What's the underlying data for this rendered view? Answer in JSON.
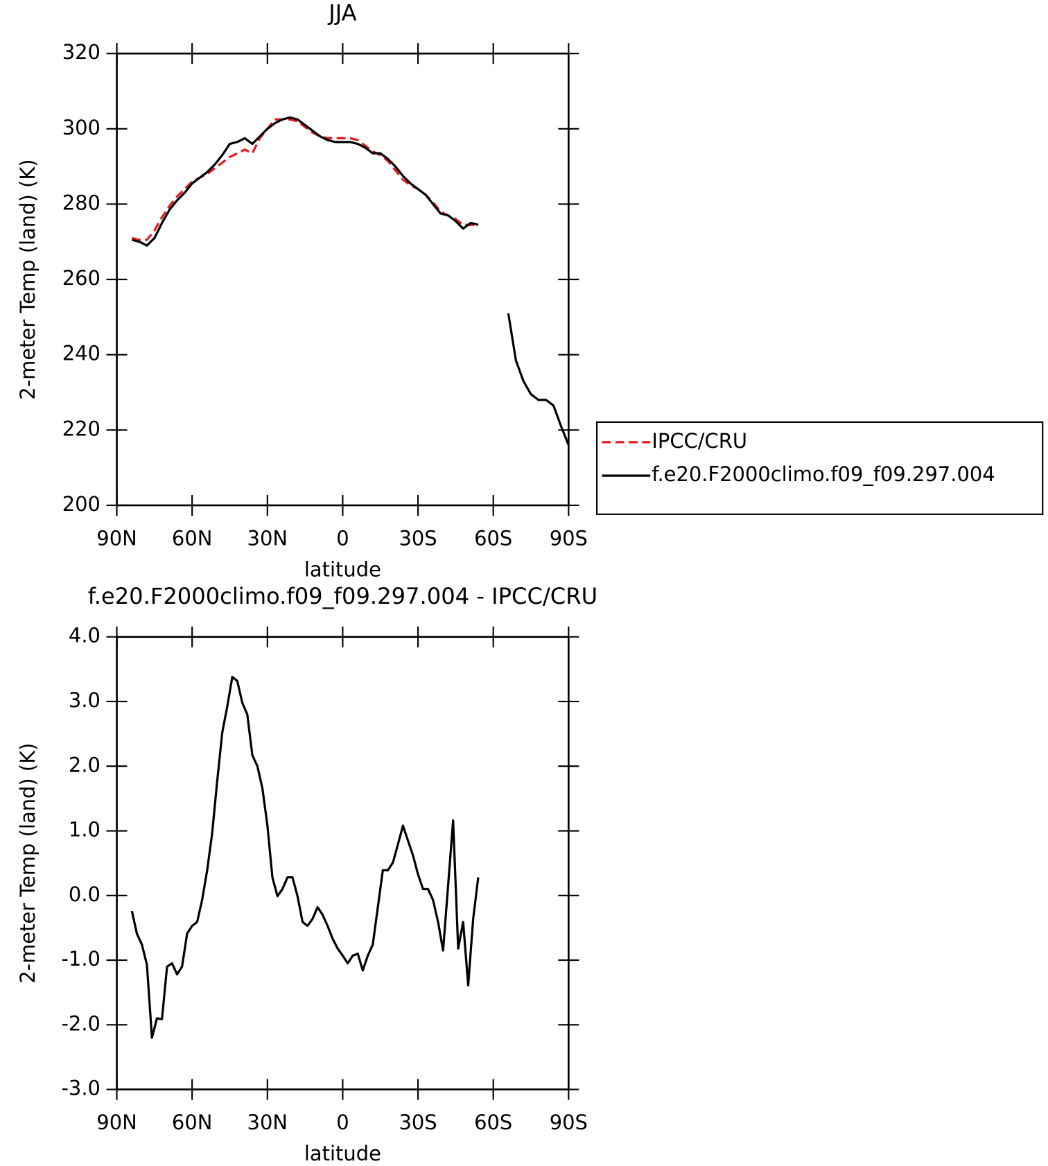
{
  "chart_data": [
    {
      "type": "line",
      "title": "JJA",
      "xlabel": "latitude",
      "ylabel": "2-meter Temp (land) (K)",
      "x": [
        84,
        81,
        78,
        75,
        72,
        69,
        66,
        63,
        60,
        57,
        54,
        51,
        48,
        45,
        42,
        39,
        36,
        33,
        30,
        27,
        24,
        21,
        18,
        15,
        12,
        9,
        6,
        3,
        0,
        -3,
        -6,
        -9,
        -12,
        -15,
        -18,
        -21,
        -24,
        -27,
        -30,
        -33,
        -36,
        -39,
        -42,
        -45,
        -48,
        -51,
        -54,
        -57,
        -60,
        -63,
        -66,
        -69,
        -72,
        -75,
        -78,
        -81,
        -84,
        -87,
        -90
      ],
      "series": [
        {
          "name": "IPCC/CRU",
          "color": "#e8181c",
          "dashed": true,
          "values": [
            271,
            270.5,
            270.5,
            273,
            276.5,
            279.5,
            282,
            284,
            286,
            287,
            288,
            289.5,
            291,
            292.5,
            293.5,
            294.5,
            293.5,
            297.5,
            300,
            302.5,
            302.5,
            302.5,
            302,
            300.5,
            299,
            298,
            297.5,
            297.5,
            297.5,
            297.5,
            297,
            295.5,
            294,
            293,
            291.5,
            289,
            286.5,
            285,
            284,
            282.5,
            280.5,
            278,
            277,
            276,
            274.5,
            274.5,
            274.5,
            null,
            null,
            null,
            null,
            null,
            null,
            null,
            null,
            null,
            null,
            null,
            null
          ]
        },
        {
          "name": "f.e20.F2000climo.f09_f09.297.004",
          "color": "#000000",
          "dashed": false,
          "values": [
            270.5,
            270,
            269,
            271,
            275,
            278.5,
            281,
            283,
            285.5,
            287,
            288.5,
            290.5,
            293,
            296,
            296.5,
            297.5,
            296,
            298,
            300,
            301.5,
            302.5,
            303,
            302.5,
            301,
            299.5,
            298,
            297,
            296.5,
            296.5,
            296.5,
            296,
            295,
            293.5,
            293.5,
            292,
            290,
            287.5,
            285.5,
            284,
            282.5,
            280,
            277.5,
            277,
            275.5,
            273.5,
            275,
            274.5,
            null,
            null,
            null,
            251,
            238.5,
            233,
            229.5,
            228,
            228,
            226.5,
            221,
            216
          ]
        }
      ],
      "xlim": [
        90,
        -90
      ],
      "xticks": [
        {
          "value": 90,
          "label": "90N"
        },
        {
          "value": 60,
          "label": "60N"
        },
        {
          "value": 30,
          "label": "30N"
        },
        0,
        {
          "value": -30,
          "label": "30S"
        },
        {
          "value": -60,
          "label": "60S"
        },
        {
          "value": -90,
          "label": "90S"
        }
      ],
      "ylim": [
        200,
        320
      ],
      "yticks": [
        200,
        220,
        240,
        260,
        280,
        300,
        320
      ],
      "legend": "right"
    },
    {
      "type": "line",
      "title": "f.e20.F2000climo.f09_f09.297.004 - IPCC/CRU",
      "xlabel": "latitude",
      "ylabel": "2-meter Temp (land) (K)",
      "x": [
        84,
        82,
        80,
        78,
        76,
        74,
        72,
        70,
        68,
        66,
        64,
        62,
        60,
        58,
        56,
        54,
        52,
        50,
        48,
        46,
        44,
        42,
        40,
        38,
        36,
        34,
        32,
        30,
        28,
        26,
        24,
        22,
        20,
        18,
        16,
        14,
        12,
        10,
        8,
        6,
        4,
        2,
        0,
        -2,
        -4,
        -6,
        -8,
        -10,
        -12,
        -14,
        -16,
        -18,
        -20,
        -22,
        -24,
        -26,
        -28,
        -30,
        -32,
        -34,
        -36,
        -38,
        -40,
        -42,
        -44,
        -46,
        -48,
        -50,
        -52,
        -54
      ],
      "series": [
        {
          "color": "#000000",
          "dashed": false,
          "values": [
            -0.24,
            -0.59,
            -0.76,
            -1.07,
            -2.2,
            -1.9,
            -1.91,
            -1.1,
            -1.05,
            -1.22,
            -1.1,
            -0.59,
            -0.47,
            -0.41,
            -0.07,
            0.39,
            0.97,
            1.77,
            2.52,
            2.92,
            3.38,
            3.32,
            2.98,
            2.8,
            2.17,
            2.0,
            1.66,
            1.08,
            0.28,
            -0.01,
            0.1,
            0.28,
            0.28,
            -0.01,
            -0.41,
            -0.47,
            -0.36,
            -0.18,
            -0.3,
            -0.47,
            -0.67,
            -0.82,
            -0.93,
            -1.05,
            -0.93,
            -0.9,
            -1.16,
            -0.93,
            -0.76,
            -0.18,
            0.39,
            0.39,
            0.51,
            0.79,
            1.08,
            0.85,
            0.62,
            0.33,
            0.1,
            0.1,
            -0.07,
            -0.41,
            -0.85,
            0.16,
            1.16,
            -0.82,
            -0.41,
            -1.39,
            -0.36,
            0.28
          ]
        }
      ],
      "xlim": [
        90,
        -90
      ],
      "xticks": [
        {
          "value": 90,
          "label": "90N"
        },
        {
          "value": 60,
          "label": "60N"
        },
        {
          "value": 30,
          "label": "30N"
        },
        0,
        {
          "value": -30,
          "label": "30S"
        },
        {
          "value": -60,
          "label": "60S"
        },
        {
          "value": -90,
          "label": "90S"
        }
      ],
      "ylim": [
        -3,
        4
      ],
      "yticks": [
        {
          "value": -3,
          "label": "-3.0"
        },
        {
          "value": -2,
          "label": "-2.0"
        },
        {
          "value": -1,
          "label": "-1.0"
        },
        {
          "value": 0,
          "label": "0.0"
        },
        {
          "value": 1,
          "label": "1.0"
        },
        {
          "value": 2,
          "label": "2.0"
        },
        {
          "value": 3,
          "label": "3.0"
        },
        {
          "value": 4,
          "label": "4.0"
        }
      ]
    }
  ]
}
